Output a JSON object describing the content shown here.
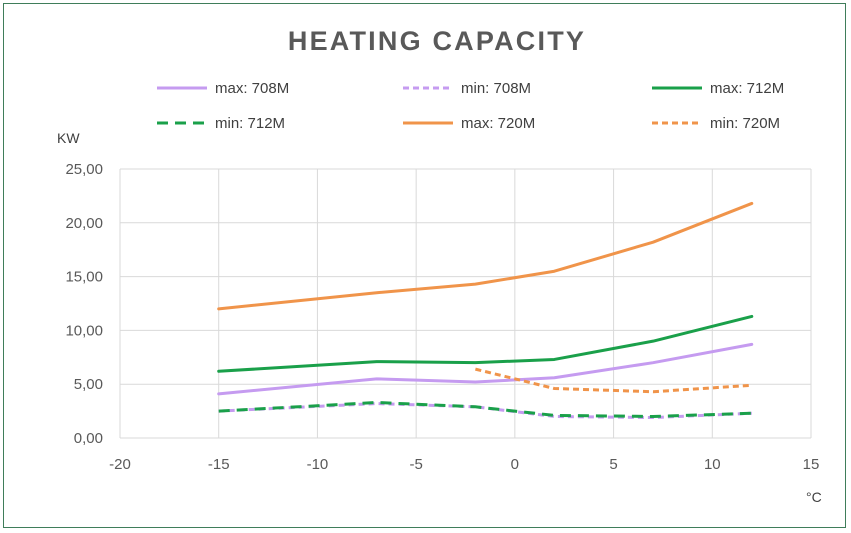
{
  "chart_data": {
    "type": "line",
    "title": "HEATING CAPACITY",
    "ylabel": "KW",
    "xlabel": "°C",
    "xlim": [
      -20,
      15
    ],
    "ylim": [
      0,
      25
    ],
    "x_ticks": [
      "-20",
      "-15",
      "-10",
      "-5",
      "0",
      "5",
      "10",
      "15"
    ],
    "y_ticks": [
      "0,00",
      "5,00",
      "10,00",
      "15,00",
      "20,00",
      "25,00"
    ],
    "grid": true,
    "legend_position": "top",
    "series": [
      {
        "name": "max: 708M",
        "color": "#c59bf0",
        "dashed": false,
        "x": [
          -15,
          -7,
          -2,
          2,
          7,
          12
        ],
        "y": [
          4.1,
          5.5,
          5.2,
          5.6,
          7.0,
          8.7
        ]
      },
      {
        "name": "min: 708M",
        "color": "#c59bf0",
        "dashed": true,
        "x": [
          -15,
          -7,
          -2,
          2,
          7,
          12
        ],
        "y": [
          2.5,
          3.2,
          2.9,
          2.0,
          1.9,
          2.3
        ]
      },
      {
        "name": "max: 712M",
        "color": "#1aa04a",
        "dashed": false,
        "x": [
          -15,
          -7,
          -2,
          2,
          7,
          12
        ],
        "y": [
          6.2,
          7.1,
          7.0,
          7.3,
          9.0,
          11.3
        ]
      },
      {
        "name": "min: 712M",
        "color": "#1aa04a",
        "dashed": true,
        "x": [
          -15,
          -7,
          -2,
          2,
          7,
          12
        ],
        "y": [
          2.5,
          3.3,
          2.9,
          2.1,
          2.0,
          2.3
        ]
      },
      {
        "name": "max: 720M",
        "color": "#f0944a",
        "dashed": false,
        "x": [
          -15,
          -7,
          -2,
          2,
          7,
          12
        ],
        "y": [
          12.0,
          13.5,
          14.3,
          15.5,
          18.2,
          21.8
        ]
      },
      {
        "name": "min: 720M",
        "color": "#f0944a",
        "dashed": true,
        "x": [
          -2,
          2,
          7,
          12
        ],
        "y": [
          6.4,
          4.6,
          4.3,
          4.9
        ]
      }
    ]
  }
}
